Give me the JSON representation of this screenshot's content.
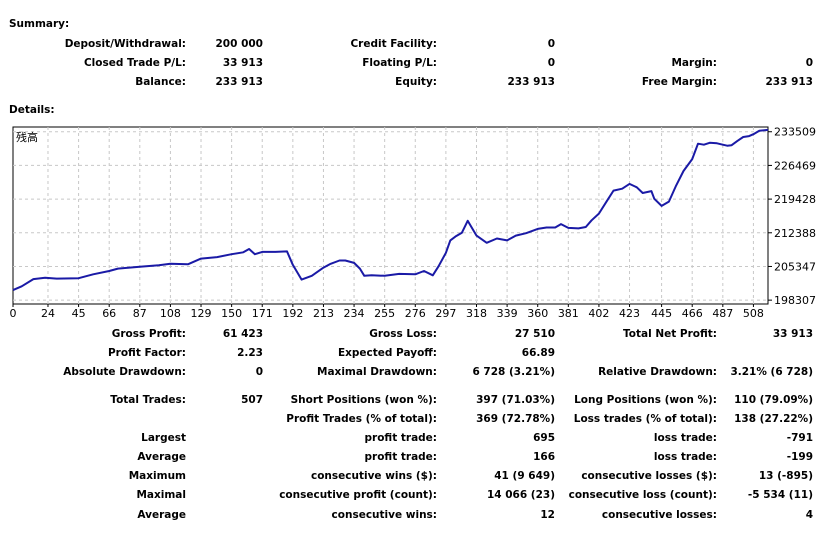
{
  "summary": {
    "heading": "Summary:",
    "rows": [
      [
        {
          "label": "Deposit/Withdrawal:",
          "value": "200 000"
        },
        {
          "label": "Credit Facility:",
          "value": "0"
        },
        {
          "label": "",
          "value": ""
        }
      ],
      [
        {
          "label": "Closed Trade P/L:",
          "value": "33 913"
        },
        {
          "label": "Floating P/L:",
          "value": "0"
        },
        {
          "label": "Margin:",
          "value": "0"
        }
      ],
      [
        {
          "label": "Balance:",
          "value": "233 913"
        },
        {
          "label": "Equity:",
          "value": "233 913"
        },
        {
          "label": "Free Margin:",
          "value": "233 913"
        }
      ]
    ]
  },
  "details": {
    "heading": "Details:",
    "rows": [
      [
        {
          "label": "Gross Profit:",
          "value": "61 423"
        },
        {
          "label": "Gross Loss:",
          "value": "27 510"
        },
        {
          "label": "Total Net Profit:",
          "value": "33 913"
        }
      ],
      [
        {
          "label": "Profit Factor:",
          "value": "2.23"
        },
        {
          "label": "Expected Payoff:",
          "value": "66.89"
        },
        {
          "label": "",
          "value": ""
        }
      ],
      [
        {
          "label": "Absolute Drawdown:",
          "value": "0"
        },
        {
          "label": "Maximal Drawdown:",
          "value": "6 728 (3.21%)"
        },
        {
          "label": "Relative Drawdown:",
          "value": "3.21% (6 728)"
        }
      ],
      [
        {
          "label": "Total Trades:",
          "value": "507"
        },
        {
          "label": "Short Positions (won %):",
          "value": "397 (71.03%)"
        },
        {
          "label": "Long Positions (won %):",
          "value": "110 (79.09%)"
        }
      ],
      [
        {
          "label": "",
          "value": ""
        },
        {
          "label": "Profit Trades (% of total):",
          "value": "369 (72.78%)"
        },
        {
          "label": "Loss trades (% of total):",
          "value": "138 (27.22%)"
        }
      ],
      [
        {
          "label": "Largest",
          "value": ""
        },
        {
          "label": "profit trade:",
          "value": "695"
        },
        {
          "label": "loss trade:",
          "value": "-791"
        }
      ],
      [
        {
          "label": "Average",
          "value": ""
        },
        {
          "label": "profit trade:",
          "value": "166"
        },
        {
          "label": "loss trade:",
          "value": "-199"
        }
      ],
      [
        {
          "label": "Maximum",
          "value": ""
        },
        {
          "label": "consecutive wins ($):",
          "value": "41 (9 649)"
        },
        {
          "label": "consecutive losses ($):",
          "value": "13 (-895)"
        }
      ],
      [
        {
          "label": "Maximal",
          "value": ""
        },
        {
          "label": "consecutive profit (count):",
          "value": "14 066 (23)"
        },
        {
          "label": "consecutive loss (count):",
          "value": "-5 534 (11)"
        }
      ],
      [
        {
          "label": "Average",
          "value": ""
        },
        {
          "label": "consecutive wins:",
          "value": "12"
        },
        {
          "label": "consecutive losses:",
          "value": "4"
        }
      ]
    ]
  },
  "chart_data": {
    "type": "line",
    "title": "残高",
    "xlabel": "",
    "ylabel": "",
    "xlim": [
      0,
      518
    ],
    "ylim": [
      197500,
      234500
    ],
    "grid": true,
    "line_color": "#1a1aa6",
    "x_ticks": [
      "0",
      "24",
      "45",
      "66",
      "87",
      "108",
      "129",
      "150",
      "171",
      "192",
      "213",
      "234",
      "255",
      "276",
      "297",
      "318",
      "339",
      "360",
      "381",
      "402",
      "423",
      "445",
      "466",
      "487",
      "508"
    ],
    "y_ticks": [
      "233509",
      "226469",
      "219428",
      "212388",
      "205347",
      "198307"
    ],
    "series": [
      {
        "name": "",
        "x": [
          0,
          6,
          14,
          22,
          30,
          45,
          55,
          66,
          72,
          80,
          87,
          100,
          108,
          120,
          129,
          140,
          150,
          158,
          162,
          166,
          171,
          180,
          188,
          192,
          198,
          205,
          213,
          218,
          224,
          228,
          234,
          238,
          241,
          246,
          255,
          265,
          276,
          282,
          288,
          292,
          297,
          300,
          304,
          308,
          312,
          318,
          325,
          332,
          339,
          345,
          352,
          360,
          366,
          372,
          376,
          381,
          388,
          393,
          397,
          402,
          408,
          412,
          418,
          423,
          428,
          432,
          438,
          440,
          445,
          450,
          455,
          460,
          466,
          470,
          474,
          478,
          483,
          487,
          490,
          493,
          497,
          501,
          505,
          508,
          512,
          518
        ],
        "y": [
          200400,
          201200,
          202700,
          203000,
          202800,
          202900,
          203700,
          204400,
          204900,
          205100,
          205300,
          205600,
          205900,
          205800,
          207000,
          207300,
          207900,
          208300,
          209000,
          207900,
          208400,
          208400,
          208500,
          205700,
          202600,
          203400,
          205100,
          205900,
          206600,
          206600,
          206100,
          204900,
          203400,
          203500,
          203400,
          203800,
          203700,
          204400,
          203500,
          205400,
          208200,
          210800,
          211700,
          212400,
          214900,
          211800,
          210300,
          211200,
          210800,
          211800,
          212300,
          213200,
          213500,
          213500,
          214200,
          213400,
          213300,
          213600,
          215000,
          216400,
          219300,
          221200,
          221600,
          222600,
          221900,
          220700,
          221100,
          219500,
          218000,
          218900,
          222300,
          225300,
          227800,
          231000,
          230800,
          231200,
          231100,
          230800,
          230600,
          230700,
          231600,
          232400,
          232600,
          233000,
          233700,
          233900
        ]
      }
    ]
  }
}
